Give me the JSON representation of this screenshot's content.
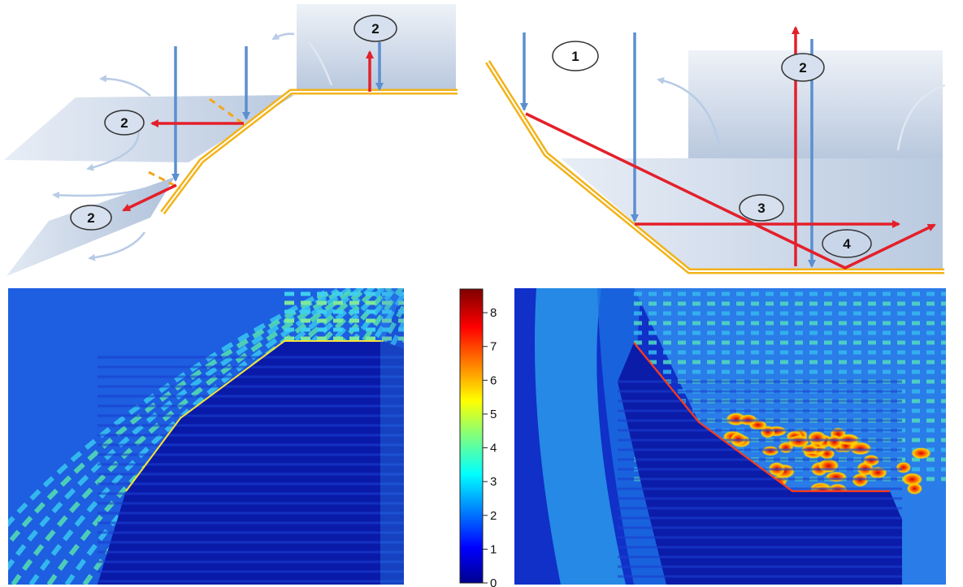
{
  "top_left": {
    "markers": [
      {
        "id": "2",
        "label": "2"
      },
      {
        "id": "2",
        "label": "2"
      },
      {
        "id": "2",
        "label": "2"
      }
    ]
  },
  "top_right": {
    "markers": [
      {
        "id": "1",
        "label": "1"
      },
      {
        "id": "2",
        "label": "2"
      },
      {
        "id": "3",
        "label": "3"
      },
      {
        "id": "4",
        "label": "4"
      }
    ]
  },
  "colorbar": {
    "ticks": [
      "0",
      "1",
      "2",
      "3",
      "4",
      "5",
      "6",
      "7",
      "8"
    ],
    "min": 0,
    "max": 8.7
  },
  "colors": {
    "incident_ray": "#5b8fd0",
    "reflected_ray": "#e3202a",
    "surface": "#f2b31a",
    "surface_edge": "#ffffff",
    "plane_fill": "#c7d4e6",
    "tangent_dash": "#f2a81a"
  }
}
